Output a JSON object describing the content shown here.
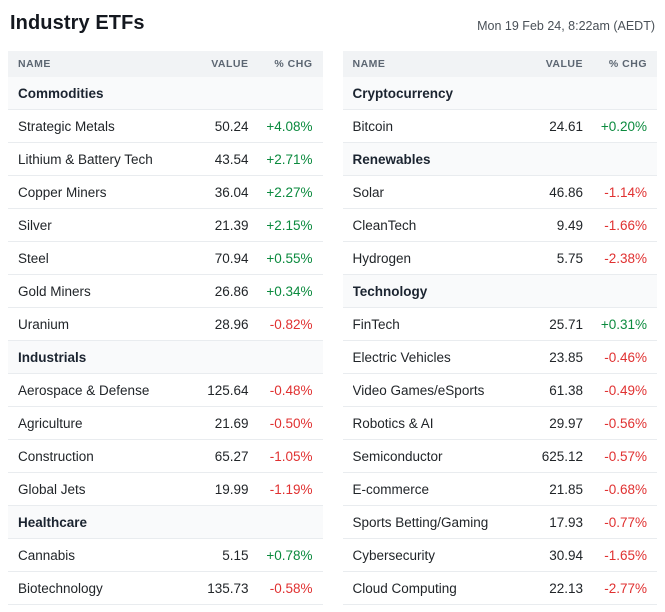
{
  "header": {
    "title": "Industry ETFs",
    "timestamp": "Mon 19 Feb 24, 8:22am (AEDT)"
  },
  "columns": {
    "name": "NAME",
    "value": "VALUE",
    "chg": "% CHG"
  },
  "colors": {
    "up": "#0b8a3e",
    "down": "#e03131"
  },
  "left_sections": [
    {
      "title": "Commodities",
      "rows": [
        {
          "name": "Strategic Metals",
          "value": "50.24",
          "chg": "+4.08%"
        },
        {
          "name": "Lithium & Battery Tech",
          "value": "43.54",
          "chg": "+2.71%"
        },
        {
          "name": "Copper Miners",
          "value": "36.04",
          "chg": "+2.27%"
        },
        {
          "name": "Silver",
          "value": "21.39",
          "chg": "+2.15%"
        },
        {
          "name": "Steel",
          "value": "70.94",
          "chg": "+0.55%"
        },
        {
          "name": "Gold Miners",
          "value": "26.86",
          "chg": "+0.34%"
        },
        {
          "name": "Uranium",
          "value": "28.96",
          "chg": "-0.82%"
        }
      ]
    },
    {
      "title": "Industrials",
      "rows": [
        {
          "name": "Aerospace & Defense",
          "value": "125.64",
          "chg": "-0.48%"
        },
        {
          "name": "Agriculture",
          "value": "21.69",
          "chg": "-0.50%"
        },
        {
          "name": "Construction",
          "value": "65.27",
          "chg": "-1.05%"
        },
        {
          "name": "Global Jets",
          "value": "19.99",
          "chg": "-1.19%"
        }
      ]
    },
    {
      "title": "Healthcare",
      "rows": [
        {
          "name": "Cannabis",
          "value": "5.15",
          "chg": "+0.78%"
        },
        {
          "name": "Biotechnology",
          "value": "135.73",
          "chg": "-0.58%"
        }
      ]
    }
  ],
  "right_sections": [
    {
      "title": "Cryptocurrency",
      "rows": [
        {
          "name": "Bitcoin",
          "value": "24.61",
          "chg": "+0.20%"
        }
      ]
    },
    {
      "title": "Renewables",
      "rows": [
        {
          "name": "Solar",
          "value": "46.86",
          "chg": "-1.14%"
        },
        {
          "name": "CleanTech",
          "value": "9.49",
          "chg": "-1.66%"
        },
        {
          "name": "Hydrogen",
          "value": "5.75",
          "chg": "-2.38%"
        }
      ]
    },
    {
      "title": "Technology",
      "rows": [
        {
          "name": "FinTech",
          "value": "25.71",
          "chg": "+0.31%"
        },
        {
          "name": "Electric Vehicles",
          "value": "23.85",
          "chg": "-0.46%"
        },
        {
          "name": "Video Games/eSports",
          "value": "61.38",
          "chg": "-0.49%"
        },
        {
          "name": "Robotics & AI",
          "value": "29.97",
          "chg": "-0.56%"
        },
        {
          "name": "Semiconductor",
          "value": "625.12",
          "chg": "-0.57%"
        },
        {
          "name": "E-commerce",
          "value": "21.85",
          "chg": "-0.68%"
        },
        {
          "name": "Sports Betting/Gaming",
          "value": "17.93",
          "chg": "-0.77%"
        },
        {
          "name": "Cybersecurity",
          "value": "30.94",
          "chg": "-1.65%"
        },
        {
          "name": "Cloud Computing",
          "value": "22.13",
          "chg": "-2.77%"
        }
      ]
    }
  ]
}
